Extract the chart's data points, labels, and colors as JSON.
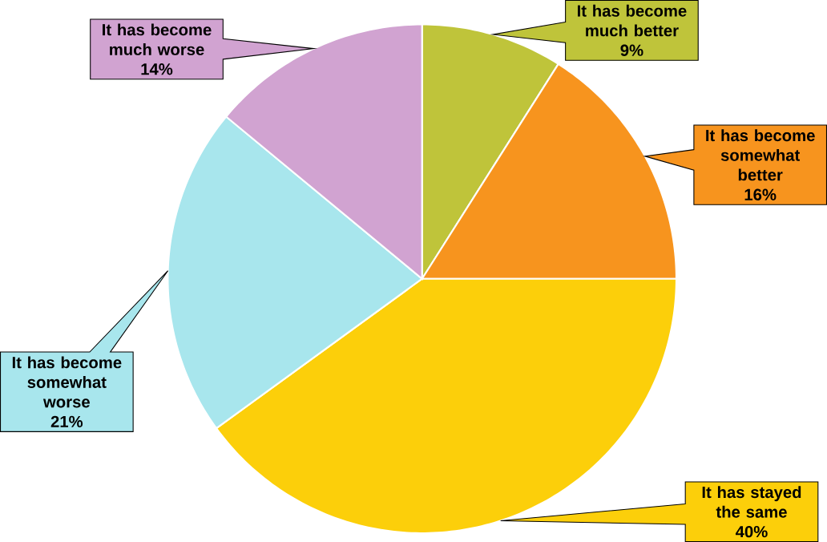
{
  "chart_data": {
    "type": "pie",
    "categories": [
      "It has become much better",
      "It has become somewhat better",
      "It has stayed the same",
      "It has become somewhat worse",
      "It has become much worse"
    ],
    "values": [
      9,
      16,
      40,
      21,
      14
    ],
    "value_labels": [
      "9%",
      "16%",
      "40%",
      "21%",
      "14%"
    ],
    "colors": [
      "#bfc43a",
      "#f7941e",
      "#fccf0a",
      "#a8e6ed",
      "#d1a3d1"
    ]
  }
}
